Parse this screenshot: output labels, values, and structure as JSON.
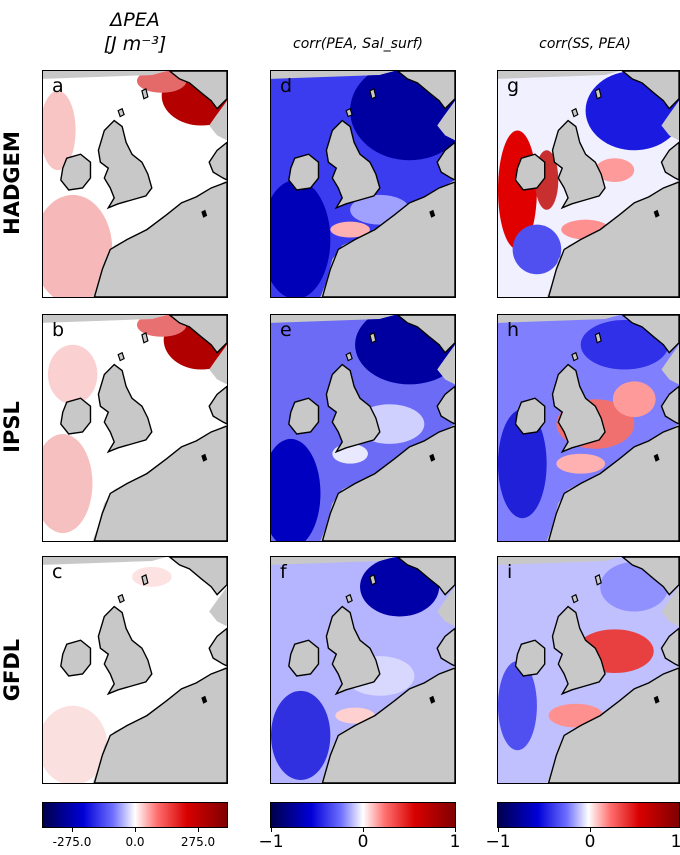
{
  "columns": {
    "c1": {
      "title": "ΔPEA",
      "unit": "[J m⁻³]"
    },
    "c2": {
      "title": "corr(PEA, Sal_surf)"
    },
    "c3": {
      "title": "corr(SS, PEA)"
    }
  },
  "rows": {
    "r1": "HADGEM",
    "r2": "IPSL",
    "r3": "GFDL"
  },
  "panels": {
    "a": "a",
    "b": "b",
    "c": "c",
    "d": "d",
    "e": "e",
    "f": "f",
    "g": "g",
    "h": "h",
    "i": "i"
  },
  "colorbars": {
    "cb1": {
      "ticks": [
        "-275.0",
        "0.0",
        "275.0"
      ]
    },
    "cb2": {
      "ticks": [
        "−1",
        "0",
        "1"
      ]
    },
    "cb3": {
      "ticks": [
        "−1",
        "0",
        "1"
      ]
    }
  },
  "colors": {
    "land": "#c8c8c8",
    "neg": "#0000d8",
    "neutral": "#ffffff",
    "pos": "#d80000"
  }
}
